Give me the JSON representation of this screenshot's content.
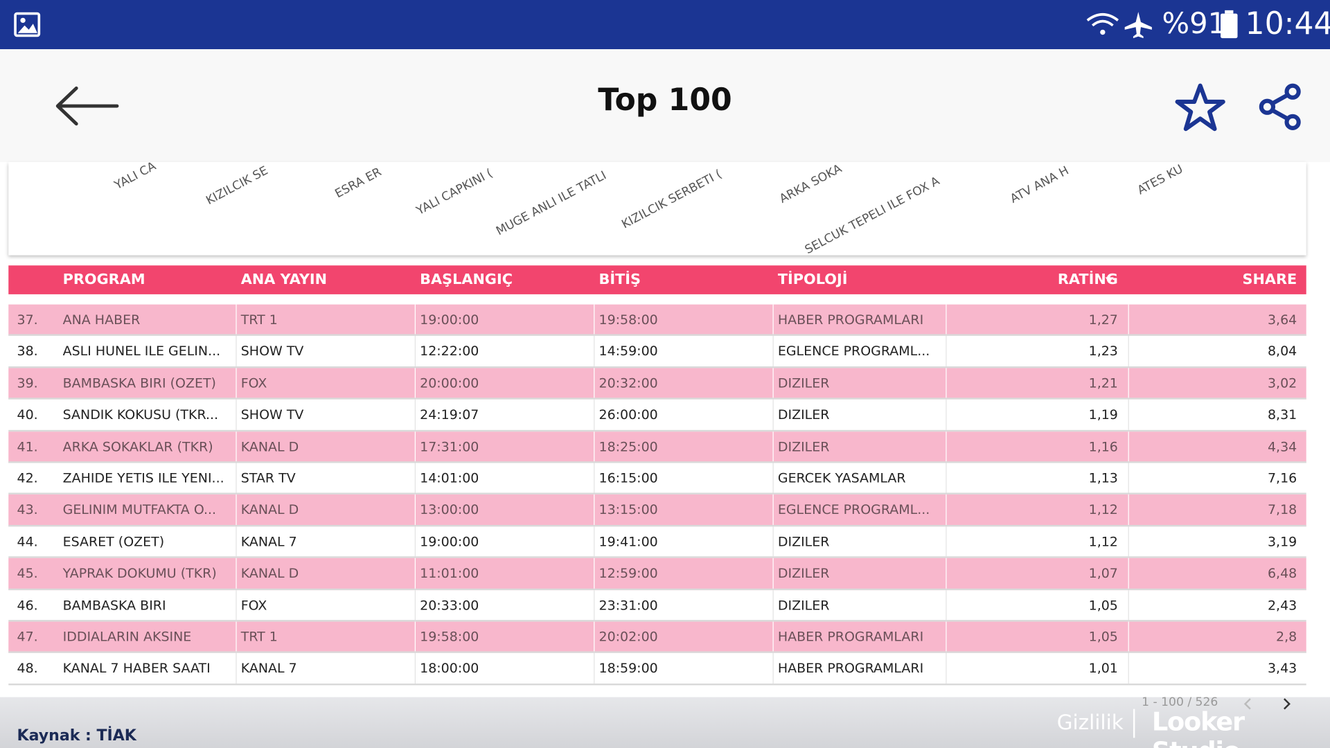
{
  "status": {
    "battery": "%91",
    "time": "10:44"
  },
  "header": {
    "title": "Top 100"
  },
  "axis_labels": [
    "YALI CA",
    "KIZILCIK SE",
    "ESRA ER",
    "YALI CAPKINI (",
    "MUGE ANLI ILE TATLI",
    "KIZILCIK SERBETI (",
    "ARKA SOKA",
    "SELCUK TEPELI ILE FOX A",
    "ATV ANA H",
    "ATES KU"
  ],
  "table": {
    "columns": [
      "PROGRAM",
      "ANA YAYIN",
      "BAŞLANGIÇ",
      "BİTİŞ",
      "TİPOLOJİ",
      "RATİNG",
      "SHARE"
    ],
    "rows": [
      [
        "37.",
        "ANA HABER",
        "TRT 1",
        "19:00:00",
        "19:58:00",
        "HABER PROGRAMLARI",
        "1,27",
        "3,64"
      ],
      [
        "38.",
        "ASLI HUNEL ILE GELIN...",
        "SHOW TV",
        "12:22:00",
        "14:59:00",
        "EGLENCE PROGRAML...",
        "1,23",
        "8,04"
      ],
      [
        "39.",
        "BAMBASKA BIRI (OZET)",
        "FOX",
        "20:00:00",
        "20:32:00",
        "DIZILER",
        "1,21",
        "3,02"
      ],
      [
        "40.",
        "SANDIK KOKUSU (TKR...",
        "SHOW TV",
        "24:19:07",
        "26:00:00",
        "DIZILER",
        "1,19",
        "8,31"
      ],
      [
        "41.",
        "ARKA SOKAKLAR (TKR)",
        "KANAL D",
        "17:31:00",
        "18:25:00",
        "DIZILER",
        "1,16",
        "4,34"
      ],
      [
        "42.",
        "ZAHIDE YETIS ILE YENI...",
        "STAR TV",
        "14:01:00",
        "16:15:00",
        "GERCEK YASAMLAR",
        "1,13",
        "7,16"
      ],
      [
        "43.",
        "GELINIM MUTFAKTA O...",
        "KANAL D",
        "13:00:00",
        "13:15:00",
        "EGLENCE PROGRAML...",
        "1,12",
        "7,18"
      ],
      [
        "44.",
        "ESARET (OZET)",
        "KANAL 7",
        "19:00:00",
        "19:41:00",
        "DIZILER",
        "1,12",
        "3,19"
      ],
      [
        "45.",
        "YAPRAK DOKUMU (TKR)",
        "KANAL D",
        "11:01:00",
        "12:59:00",
        "DIZILER",
        "1,07",
        "6,48"
      ],
      [
        "46.",
        "BAMBASKA BIRI",
        "FOX",
        "20:33:00",
        "23:31:00",
        "DIZILER",
        "1,05",
        "2,43"
      ],
      [
        "47.",
        "IDDIALARIN AKSINE",
        "TRT 1",
        "19:58:00",
        "20:02:00",
        "HABER PROGRAMLARI",
        "1,05",
        "2,8"
      ],
      [
        "48.",
        "KANAL 7 HABER SAATI",
        "KANAL 7",
        "18:00:00",
        "18:59:00",
        "HABER PROGRAMLARI",
        "1,01",
        "3,43"
      ]
    ]
  },
  "footer": {
    "pagination": "1 - 100 / 526",
    "source": "Kaynak : TİAK",
    "privacy": "Gizlilik",
    "brand": "Looker Studio"
  }
}
